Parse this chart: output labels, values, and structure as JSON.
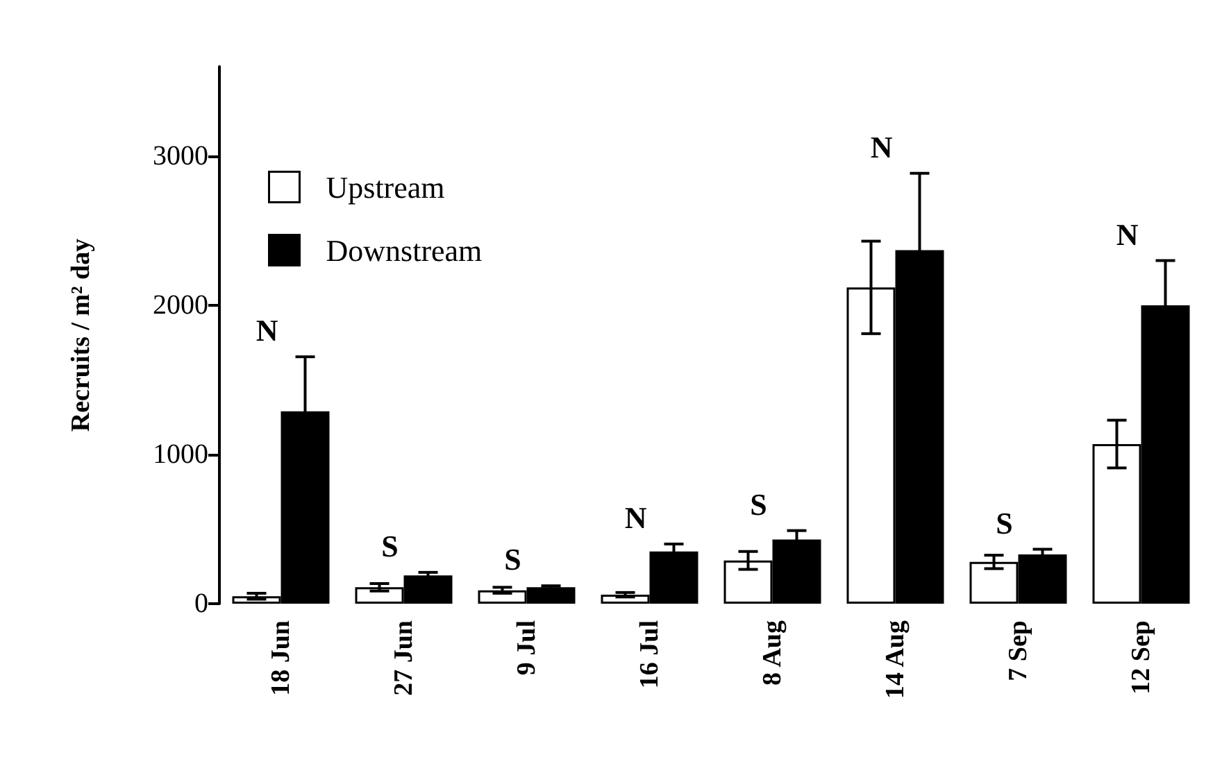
{
  "chart_data": {
    "type": "bar",
    "ylabel": "Recruits / m² day",
    "categories": [
      "18 Jun",
      "27 Jun",
      "9 Jul",
      "16 Jul",
      "8 Aug",
      "14 Aug",
      "7 Sep",
      "12 Sep"
    ],
    "series": [
      {
        "name": "Upstream",
        "color": "#ffffff",
        "values": [
          50,
          110,
          90,
          60,
          290,
          2120,
          280,
          1070
        ],
        "errors": [
          20,
          25,
          20,
          15,
          60,
          310,
          45,
          160
        ]
      },
      {
        "name": "Downstream",
        "color": "#000000",
        "values": [
          1290,
          190,
          110,
          350,
          430,
          2370,
          330,
          2000
        ],
        "errors": [
          365,
          20,
          10,
          50,
          60,
          515,
          35,
          300
        ]
      }
    ],
    "ylim": [
      0,
      3600
    ],
    "yticks": [
      0,
      1000,
      2000,
      3000
    ],
    "grid": false,
    "legend": "top left",
    "annotations": [
      "N",
      "S",
      "S",
      "N",
      "S",
      "N",
      "S",
      "N"
    ]
  }
}
